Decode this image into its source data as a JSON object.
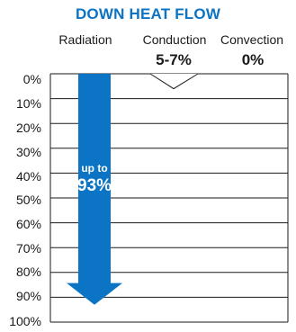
{
  "title": "DOWN HEAT FLOW",
  "columns": [
    {
      "label": "Radiation",
      "value": ""
    },
    {
      "label": "Conduction",
      "value": "5-7%"
    },
    {
      "label": "Convection",
      "value": "0%"
    }
  ],
  "y_ticks": [
    "0%",
    "10%",
    "20%",
    "30%",
    "40%",
    "50%",
    "60%",
    "70%",
    "80%",
    "90%",
    "100%"
  ],
  "radiation_arrow": {
    "text_small": "up to",
    "text_big": "93%",
    "value_percent": 93
  },
  "conduction_value_percent": 6,
  "colors": {
    "title": "#0b74c4",
    "arrow": "#0b74c4"
  }
}
